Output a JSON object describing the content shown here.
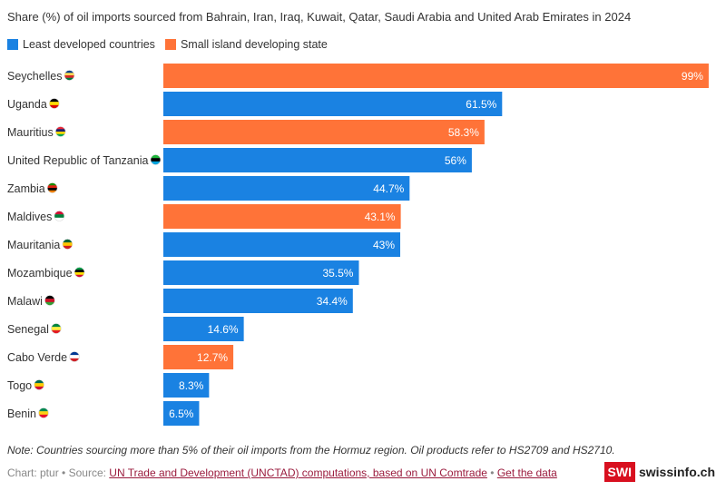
{
  "header": {
    "subtitle": "Share (%) of oil imports sourced from Bahrain, Iran, Iraq, Kuwait, Qatar, Saudi Arabia and United Arab Emirates in 2024"
  },
  "legend": {
    "items": [
      {
        "label": "Least developed countries",
        "color": "#1a82e2"
      },
      {
        "label": "Small island developing state",
        "color": "#ff7338"
      }
    ]
  },
  "chart_data": {
    "type": "bar",
    "orientation": "horizontal",
    "categories": [
      "Seychelles",
      "Uganda",
      "Mauritius",
      "United Republic of Tanzania",
      "Zambia",
      "Maldives",
      "Mauritania",
      "Mozambique",
      "Malawi",
      "Senegal",
      "Cabo Verde",
      "Togo",
      "Benin"
    ],
    "values": [
      99,
      61.5,
      58.3,
      56,
      44.7,
      43.1,
      43,
      35.5,
      34.4,
      14.6,
      12.7,
      8.3,
      6.5
    ],
    "value_labels": [
      "99%",
      "61.5%",
      "58.3%",
      "56%",
      "44.7%",
      "43.1%",
      "43%",
      "35.5%",
      "34.4%",
      "14.6%",
      "12.7%",
      "8.3%",
      "6.5%"
    ],
    "groups": [
      "Small island developing state",
      "Least developed countries",
      "Small island developing state",
      "Least developed countries",
      "Least developed countries",
      "Small island developing state",
      "Least developed countries",
      "Least developed countries",
      "Least developed countries",
      "Least developed countries",
      "Small island developing state",
      "Least developed countries",
      "Least developed countries"
    ],
    "xlim": [
      0,
      100
    ],
    "grid": false,
    "legend_position": "top-left",
    "flag_icons": [
      "seychelles-flag-icon",
      "uganda-flag-icon",
      "mauritius-flag-icon",
      "tanzania-flag-icon",
      "zambia-flag-icon",
      "maldives-flag-icon",
      "mauritania-flag-icon",
      "mozambique-flag-icon",
      "malawi-flag-icon",
      "senegal-flag-icon",
      "cabo-verde-flag-icon",
      "togo-flag-icon",
      "benin-flag-icon"
    ]
  },
  "note": "Note: Countries sourcing more than 5% of their oil imports from the Hormuz region. Oil products refer to HS2709 and HS2710.",
  "footer": {
    "credit": "Chart: ptur",
    "source_prefix": "Source:",
    "source_link": "UN Trade and Development (UNCTAD) computations, based on UN Comtrade",
    "data_link": "Get the data",
    "separator": "•"
  },
  "logo": {
    "box_text": "SWI",
    "name": "swissinfo.ch",
    "icon": "swissinfo-logo-icon"
  }
}
